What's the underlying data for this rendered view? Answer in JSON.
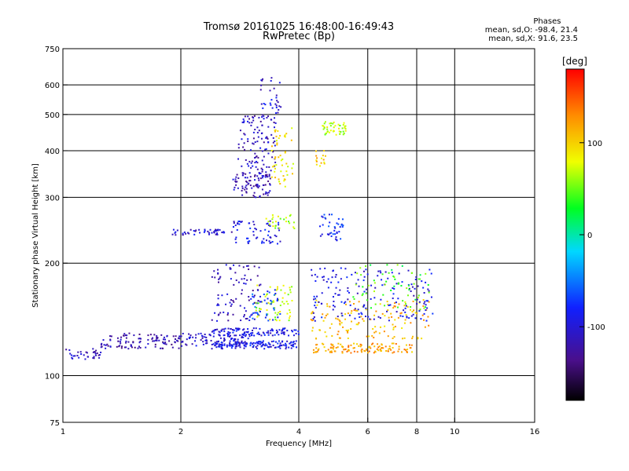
{
  "header": {
    "title_line1": "Tromsø 20161025 16:48:00-16:49:43",
    "title_line2": "RwPretec (Bp)"
  },
  "phase_stats": {
    "title": "Phases",
    "line_o": "mean, sd,O: -98.4, 21.4",
    "line_x": "mean, sd,X:  91.6, 23.5"
  },
  "chart_data": {
    "type": "scatter",
    "xlabel": "Frequency [MHz]",
    "ylabel": "Stationary phase Virtual Height [km]",
    "x_scale": "log",
    "y_scale": "log",
    "xlim": [
      1,
      16
    ],
    "ylim": [
      75,
      750
    ],
    "x_ticks": [
      1,
      2,
      4,
      6,
      8,
      10,
      16
    ],
    "x_tick_labels": [
      "1",
      "2",
      "4",
      "6",
      "8",
      "10",
      "16"
    ],
    "y_ticks": [
      75,
      100,
      200,
      300,
      400,
      500,
      600,
      750
    ],
    "y_tick_labels": [
      "75",
      "100",
      "200",
      "300",
      "400",
      "500",
      "600",
      "750"
    ],
    "grid_x": [
      2,
      4,
      6,
      8,
      10
    ],
    "grid_y": [
      100,
      200,
      300,
      400,
      500,
      600
    ],
    "grid": true,
    "colorbar": {
      "label": "[deg]",
      "range": [
        -180,
        180
      ],
      "ticks": [
        100,
        0,
        -100
      ],
      "tick_labels": [
        "100",
        "0",
        "-100"
      ]
    },
    "clusters": [
      {
        "x": [
          1.0,
          1.25
        ],
        "y": [
          110,
          118
        ],
        "phase": -110,
        "n": 35,
        "jitter": 0.015
      },
      {
        "x": [
          1.25,
          2.0
        ],
        "y": [
          118,
          130
        ],
        "phase": -120,
        "n": 110,
        "jitter": 0.02
      },
      {
        "x": [
          2.0,
          3.0
        ],
        "y": [
          120,
          130
        ],
        "phase": -105,
        "n": 90,
        "jitter": 0.015
      },
      {
        "x": [
          2.4,
          4.0
        ],
        "y": [
          118,
          124
        ],
        "phase": -90,
        "n": 140,
        "jitter": 0.01
      },
      {
        "x": [
          2.4,
          4.0
        ],
        "y": [
          128,
          134
        ],
        "phase": -95,
        "n": 110,
        "jitter": 0.01
      },
      {
        "x": [
          2.4,
          3.2
        ],
        "y": [
          140,
          200
        ],
        "phase": -110,
        "n": 90,
        "jitter": 0.03
      },
      {
        "x": [
          3.1,
          3.9
        ],
        "y": [
          140,
          175
        ],
        "phase": 70,
        "n": 60,
        "jitter": 0.03
      },
      {
        "x": [
          3.0,
          3.6
        ],
        "y": [
          140,
          170
        ],
        "phase": -70,
        "n": 40,
        "jitter": 0.03
      },
      {
        "x": [
          1.9,
          2.7
        ],
        "y": [
          238,
          246
        ],
        "phase": -105,
        "n": 45,
        "jitter": 0.01
      },
      {
        "x": [
          2.7,
          3.6
        ],
        "y": [
          225,
          260
        ],
        "phase": -95,
        "n": 60,
        "jitter": 0.02
      },
      {
        "x": [
          3.3,
          3.9
        ],
        "y": [
          245,
          270
        ],
        "phase": 65,
        "n": 25,
        "jitter": 0.02
      },
      {
        "x": [
          2.7,
          3.4
        ],
        "y": [
          300,
          350
        ],
        "phase": -115,
        "n": 90,
        "jitter": 0.03
      },
      {
        "x": [
          2.8,
          3.5
        ],
        "y": [
          350,
          500
        ],
        "phase": -110,
        "n": 110,
        "jitter": 0.03
      },
      {
        "x": [
          3.2,
          3.6
        ],
        "y": [
          500,
          630
        ],
        "phase": -100,
        "n": 30,
        "jitter": 0.03
      },
      {
        "x": [
          3.4,
          3.9
        ],
        "y": [
          320,
          460
        ],
        "phase": 90,
        "n": 50,
        "jitter": 0.03
      },
      {
        "x": [
          4.6,
          5.3
        ],
        "y": [
          440,
          480
        ],
        "phase": 65,
        "n": 45,
        "jitter": 0.02
      },
      {
        "x": [
          4.4,
          4.7
        ],
        "y": [
          360,
          400
        ],
        "phase": 100,
        "n": 15,
        "jitter": 0.02
      },
      {
        "x": [
          4.5,
          5.2
        ],
        "y": [
          230,
          270
        ],
        "phase": -80,
        "n": 40,
        "jitter": 0.03
      },
      {
        "x": [
          4.3,
          7.8
        ],
        "y": [
          115,
          122
        ],
        "phase": 120,
        "n": 120,
        "jitter": 0.01
      },
      {
        "x": [
          4.3,
          8.6
        ],
        "y": [
          125,
          160
        ],
        "phase": 110,
        "n": 140,
        "jitter": 0.03
      },
      {
        "x": [
          4.3,
          8.8
        ],
        "y": [
          140,
          195
        ],
        "phase": -95,
        "n": 170,
        "jitter": 0.03
      },
      {
        "x": [
          5.5,
          8.8
        ],
        "y": [
          150,
          200
        ],
        "phase": 40,
        "n": 60,
        "jitter": 0.03
      }
    ]
  }
}
